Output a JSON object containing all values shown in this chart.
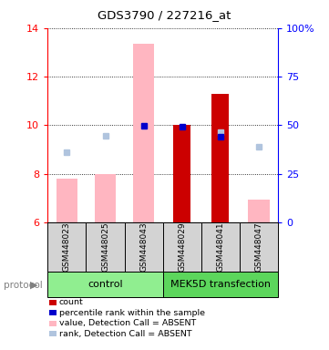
{
  "title": "GDS3790 / 227216_at",
  "samples": [
    "GSM448023",
    "GSM448025",
    "GSM448043",
    "GSM448029",
    "GSM448041",
    "GSM448047"
  ],
  "ylim_left": [
    6,
    14
  ],
  "ylim_right": [
    0,
    100
  ],
  "yticks_left": [
    6,
    8,
    10,
    12,
    14
  ],
  "yticks_right": [
    0,
    25,
    50,
    75,
    100
  ],
  "right_tick_labels": [
    "0",
    "25",
    "50",
    "75",
    "100%"
  ],
  "bar_bottom": 6,
  "absent_value_heights": [
    7.8,
    8.0,
    13.35,
    0,
    0,
    6.95
  ],
  "absent_value_color": "#FFB6C1",
  "absent_rank_values": [
    8.9,
    9.55,
    9.98,
    0,
    9.7,
    9.1
  ],
  "absent_rank_color": "#B0C4DE",
  "present_value_heights": [
    0,
    0,
    0,
    10.0,
    11.3,
    0
  ],
  "present_value_color": "#CC0000",
  "present_rank_values": [
    0,
    0,
    9.98,
    9.95,
    9.52,
    0
  ],
  "present_rank_color": "#0000CC",
  "legend_items": [
    {
      "color": "#CC0000",
      "label": "count"
    },
    {
      "color": "#0000CC",
      "label": "percentile rank within the sample"
    },
    {
      "color": "#FFB6C1",
      "label": "value, Detection Call = ABSENT"
    },
    {
      "color": "#B0C4DE",
      "label": "rank, Detection Call = ABSENT"
    }
  ],
  "group_info": [
    {
      "name": "control",
      "start": 0,
      "end": 3,
      "color": "#90EE90"
    },
    {
      "name": "MEK5D transfection",
      "start": 3,
      "end": 6,
      "color": "#5CD65C"
    }
  ],
  "sample_box_color": "#d3d3d3",
  "background_color": "#ffffff"
}
